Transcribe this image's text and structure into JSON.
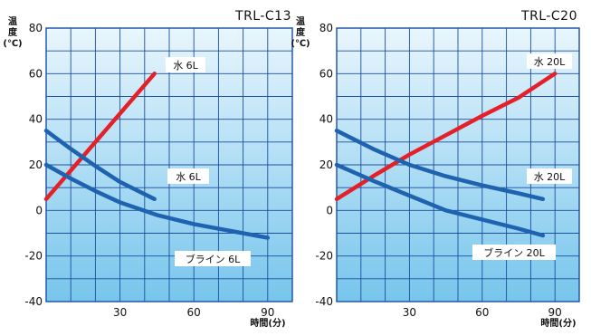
{
  "colors": {
    "hot_series": "#e42028",
    "cold_series": "#1f63b0",
    "panel_top": "#e9f6fd",
    "panel_bottom": "#77c5ec",
    "grid": "#1b4fa0",
    "label_box": "#ffffff"
  },
  "chart_data": [
    {
      "type": "line",
      "title": "TRL-C13",
      "ylabel": [
        "温",
        "度",
        "(℃)"
      ],
      "xlabel": "時間(分)",
      "xlim": [
        0,
        100
      ],
      "ylim": [
        -40,
        80
      ],
      "x_ticks": [
        30,
        60,
        90
      ],
      "y_ticks": [
        80,
        60,
        40,
        20,
        0,
        -20,
        -40
      ],
      "grid": true,
      "series": [
        {
          "name": "水 6L",
          "role": "hot",
          "x": [
            0,
            44
          ],
          "y": [
            5,
            60
          ]
        },
        {
          "name": "水 6L",
          "role": "cold",
          "x": [
            0,
            10,
            20,
            30,
            44
          ],
          "y": [
            35,
            27,
            19.5,
            12.5,
            5
          ]
        },
        {
          "name": "ブライン 6L",
          "role": "cold",
          "x": [
            0,
            10,
            20,
            30,
            45,
            60,
            75,
            90
          ],
          "y": [
            20,
            14,
            8.5,
            3.5,
            -2,
            -6,
            -9,
            -12
          ]
        }
      ],
      "annotations": [
        {
          "text": "水 6L",
          "series": 0
        },
        {
          "text": "水 6L",
          "series": 1
        },
        {
          "text": "ブライン 6L",
          "series": 2
        }
      ]
    },
    {
      "type": "line",
      "title": "TRL-C20",
      "ylabel": [
        "温",
        "度",
        "(℃)"
      ],
      "xlabel": "時間(分)",
      "xlim": [
        0,
        100
      ],
      "ylim": [
        -40,
        80
      ],
      "x_ticks": [
        30,
        60,
        90
      ],
      "y_ticks": [
        80,
        60,
        40,
        20,
        0,
        -20,
        -40
      ],
      "grid": true,
      "series": [
        {
          "name": "水 20L",
          "role": "hot",
          "x": [
            0,
            15,
            30,
            45,
            60,
            75,
            90
          ],
          "y": [
            5,
            15,
            24.5,
            33,
            41.5,
            49.5,
            60
          ]
        },
        {
          "name": "水 20L",
          "role": "cold",
          "x": [
            0,
            15,
            30,
            45,
            60,
            75,
            85
          ],
          "y": [
            35,
            27,
            20,
            15,
            11,
            7.5,
            5
          ]
        },
        {
          "name": "ブライン 20L",
          "role": "cold",
          "x": [
            0,
            15,
            30,
            45,
            60,
            75,
            85
          ],
          "y": [
            20,
            13,
            6.5,
            0,
            -4,
            -8,
            -11
          ]
        }
      ],
      "annotations": [
        {
          "text": "水 20L",
          "series": 0
        },
        {
          "text": "水 20L",
          "series": 1
        },
        {
          "text": "ブライン 20L",
          "series": 2
        }
      ]
    }
  ]
}
